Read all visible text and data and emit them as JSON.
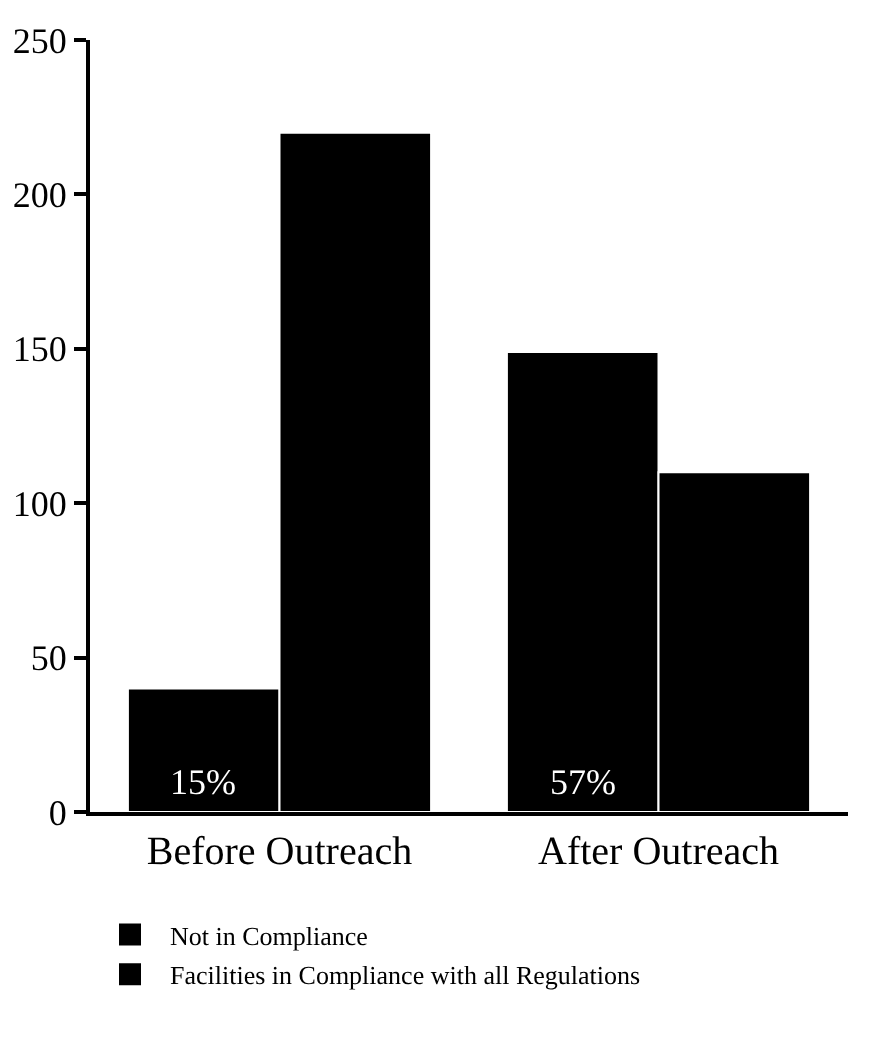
{
  "chart_data": {
    "type": "bar",
    "categories": [
      "Before Outreach",
      "After Outreach"
    ],
    "series": [
      {
        "name": "Not in Compliance",
        "color": "#000000",
        "values": [
          40,
          149
        ]
      },
      {
        "name": "Facilities in Compliance with all Regulations",
        "color": "#000000",
        "values": [
          220,
          110
        ]
      }
    ],
    "annotations": [
      {
        "text": "15%",
        "x": "Before Outreach",
        "y": 10
      },
      {
        "text": "57%",
        "x": "After Outreach",
        "y": 10
      }
    ],
    "ylim": [
      0,
      250
    ],
    "yticks": [
      0,
      50,
      100,
      150,
      200,
      250
    ],
    "grid": false,
    "legend": "bottom left"
  }
}
